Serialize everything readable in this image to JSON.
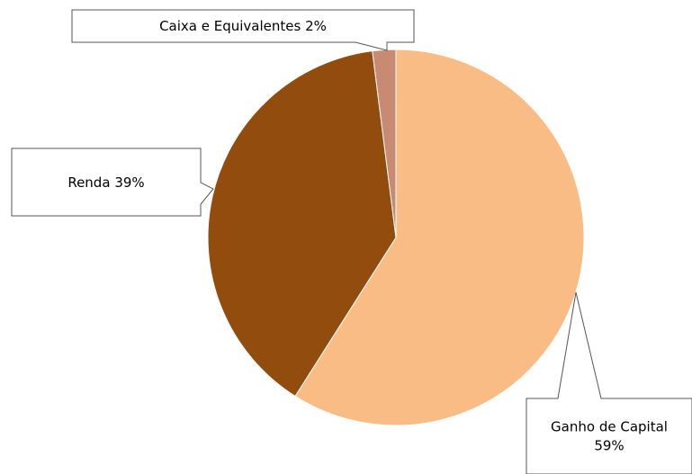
{
  "chart_data": {
    "type": "pie",
    "categories": [
      "Ganho de Capital",
      "Renda",
      "Caixa e Equivalentes"
    ],
    "values": [
      59,
      39,
      2
    ],
    "value_labels": [
      "59%",
      "39%",
      "2%"
    ],
    "colors": [
      "#f9bc84",
      "#924c0e",
      "#c98a73"
    ]
  }
}
